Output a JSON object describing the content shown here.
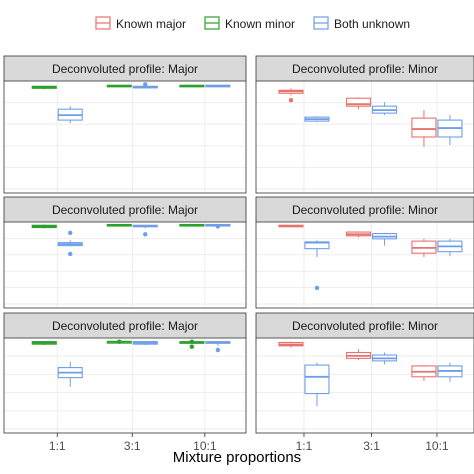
{
  "chart_data": {
    "type": "box",
    "xlabel": "Mixture proportions",
    "categories": [
      "1:1",
      "3:1",
      "10:1"
    ],
    "panels": [
      "Deconvoluted profile: Major",
      "Deconvoluted profile: Minor"
    ],
    "legend": {
      "placement": "top",
      "entries": [
        {
          "name": "Known major",
          "color": "#e8726d"
        },
        {
          "name": "Known minor",
          "color": "#2ca02c"
        },
        {
          "name": "Both unknown",
          "color": "#6f9ee8"
        }
      ]
    },
    "ylim": [
      0,
      1
    ],
    "grid": true,
    "rows": [
      {
        "Major": [
          {
            "category": "1:1",
            "group": "Known minor",
            "min": 0.96,
            "q1": 0.97,
            "median": 0.98,
            "q3": 0.99,
            "max": 0.995,
            "outliers": []
          },
          {
            "category": "1:1",
            "group": "Both unknown",
            "min": 0.62,
            "q1": 0.65,
            "median": 0.7,
            "q3": 0.76,
            "max": 0.79,
            "outliers": []
          },
          {
            "category": "3:1",
            "group": "Known minor",
            "min": 0.99,
            "q1": 0.992,
            "median": 0.995,
            "q3": 1.0,
            "max": 1.0,
            "outliers": []
          },
          {
            "category": "3:1",
            "group": "Both unknown",
            "min": 0.97,
            "q1": 0.975,
            "median": 0.98,
            "q3": 0.99,
            "max": 1.0,
            "outliers": [
              1.01
            ]
          },
          {
            "category": "10:1",
            "group": "Known minor",
            "min": 0.99,
            "q1": 0.993,
            "median": 0.996,
            "q3": 1.0,
            "max": 1.0,
            "outliers": []
          },
          {
            "category": "10:1",
            "group": "Both unknown",
            "min": 0.99,
            "q1": 0.993,
            "median": 0.997,
            "q3": 1.0,
            "max": 1.0,
            "outliers": []
          }
        ],
        "Minor": [
          {
            "category": "1:1",
            "group": "Known major",
            "min": 0.9,
            "q1": 0.92,
            "median": 0.94,
            "q3": 0.95,
            "max": 0.97,
            "outliers": [
              0.85
            ]
          },
          {
            "category": "1:1",
            "group": "Both unknown",
            "min": 0.63,
            "q1": 0.64,
            "median": 0.66,
            "q3": 0.68,
            "max": 0.69,
            "outliers": []
          },
          {
            "category": "3:1",
            "group": "Known major",
            "min": 0.76,
            "q1": 0.79,
            "median": 0.81,
            "q3": 0.87,
            "max": 0.88,
            "outliers": []
          },
          {
            "category": "3:1",
            "group": "Both unknown",
            "min": 0.7,
            "q1": 0.72,
            "median": 0.75,
            "q3": 0.79,
            "max": 0.83,
            "outliers": []
          },
          {
            "category": "10:1",
            "group": "Known major",
            "min": 0.38,
            "q1": 0.48,
            "median": 0.56,
            "q3": 0.67,
            "max": 0.75,
            "outliers": []
          },
          {
            "category": "10:1",
            "group": "Both unknown",
            "min": 0.4,
            "q1": 0.48,
            "median": 0.57,
            "q3": 0.65,
            "max": 0.7,
            "outliers": []
          }
        ]
      },
      {
        "Major": [
          {
            "category": "1:1",
            "group": "Known minor",
            "min": 0.96,
            "q1": 0.97,
            "median": 0.985,
            "q3": 1.0,
            "max": 1.01,
            "outliers": []
          },
          {
            "category": "1:1",
            "group": "Both unknown",
            "min": 0.72,
            "q1": 0.73,
            "median": 0.75,
            "q3": 0.77,
            "max": 0.8,
            "outliers": [
              0.62,
              0.9
            ]
          },
          {
            "category": "3:1",
            "group": "Known minor",
            "min": 1.0,
            "q1": 1.0,
            "median": 1.005,
            "q3": 1.01,
            "max": 1.01,
            "outliers": []
          },
          {
            "category": "3:1",
            "group": "Both unknown",
            "min": 0.96,
            "q1": 0.985,
            "median": 0.99,
            "q3": 1.0,
            "max": 1.0,
            "outliers": [
              0.88
            ]
          },
          {
            "category": "10:1",
            "group": "Known minor",
            "min": 0.99,
            "q1": 0.995,
            "median": 1.0,
            "q3": 1.01,
            "max": 1.01,
            "outliers": []
          },
          {
            "category": "10:1",
            "group": "Both unknown",
            "min": 1.0,
            "q1": 1.0,
            "median": 1.0,
            "q3": 1.01,
            "max": 1.01,
            "outliers": [
              0.985
            ]
          }
        ],
        "Minor": [
          {
            "category": "1:1",
            "group": "Known major",
            "min": 0.98,
            "q1": 0.985,
            "median": 0.99,
            "q3": 1.0,
            "max": 1.0,
            "outliers": []
          },
          {
            "category": "1:1",
            "group": "Both unknown",
            "min": 0.58,
            "q1": 0.69,
            "median": 0.77,
            "q3": 0.78,
            "max": 0.8,
            "outliers": [
              0.17
            ]
          },
          {
            "category": "3:1",
            "group": "Known major",
            "min": 0.84,
            "q1": 0.86,
            "median": 0.88,
            "q3": 0.91,
            "max": 0.92,
            "outliers": []
          },
          {
            "category": "3:1",
            "group": "Both unknown",
            "min": 0.73,
            "q1": 0.82,
            "median": 0.85,
            "q3": 0.89,
            "max": 0.9,
            "outliers": []
          },
          {
            "category": "10:1",
            "group": "Known major",
            "min": 0.58,
            "q1": 0.63,
            "median": 0.7,
            "q3": 0.79,
            "max": 0.82,
            "outliers": []
          },
          {
            "category": "10:1",
            "group": "Both unknown",
            "min": 0.59,
            "q1": 0.65,
            "median": 0.72,
            "q3": 0.79,
            "max": 0.82,
            "outliers": []
          }
        ]
      },
      {
        "Major": [
          {
            "category": "1:1",
            "group": "Known minor",
            "min": 0.96,
            "q1": 0.97,
            "median": 0.985,
            "q3": 1.0,
            "max": 1.0,
            "outliers": []
          },
          {
            "category": "1:1",
            "group": "Both unknown",
            "min": 0.46,
            "q1": 0.57,
            "median": 0.63,
            "q3": 0.69,
            "max": 0.76,
            "outliers": []
          },
          {
            "category": "3:1",
            "group": "Known minor",
            "min": 0.99,
            "q1": 0.995,
            "median": 1.0,
            "q3": 1.0,
            "max": 1.0,
            "outliers": [
              1.0
            ]
          },
          {
            "category": "3:1",
            "group": "Both unknown",
            "min": 0.96,
            "q1": 0.97,
            "median": 0.985,
            "q3": 1.0,
            "max": 1.0,
            "outliers": []
          },
          {
            "category": "10:1",
            "group": "Known minor",
            "min": 0.97,
            "q1": 0.98,
            "median": 0.99,
            "q3": 1.0,
            "max": 1.0,
            "outliers": [
              0.94,
              1.0
            ]
          },
          {
            "category": "10:1",
            "group": "Both unknown",
            "min": 0.95,
            "q1": 0.98,
            "median": 0.99,
            "q3": 1.0,
            "max": 1.0,
            "outliers": [
              0.9
            ]
          }
        ],
        "Minor": [
          {
            "category": "1:1",
            "group": "Known major",
            "min": 0.93,
            "q1": 0.95,
            "median": 0.965,
            "q3": 0.99,
            "max": 1.0,
            "outliers": []
          },
          {
            "category": "1:1",
            "group": "Both unknown",
            "min": 0.23,
            "q1": 0.38,
            "median": 0.58,
            "q3": 0.72,
            "max": 0.75,
            "outliers": []
          },
          {
            "category": "3:1",
            "group": "Known major",
            "min": 0.78,
            "q1": 0.8,
            "median": 0.83,
            "q3": 0.87,
            "max": 0.91,
            "outliers": []
          },
          {
            "category": "3:1",
            "group": "Both unknown",
            "min": 0.73,
            "q1": 0.77,
            "median": 0.8,
            "q3": 0.84,
            "max": 0.87,
            "outliers": []
          },
          {
            "category": "10:1",
            "group": "Known major",
            "min": 0.53,
            "q1": 0.58,
            "median": 0.64,
            "q3": 0.71,
            "max": 0.72,
            "outliers": []
          },
          {
            "category": "10:1",
            "group": "Both unknown",
            "min": 0.52,
            "q1": 0.58,
            "median": 0.65,
            "q3": 0.71,
            "max": 0.75,
            "outliers": []
          }
        ]
      }
    ]
  }
}
